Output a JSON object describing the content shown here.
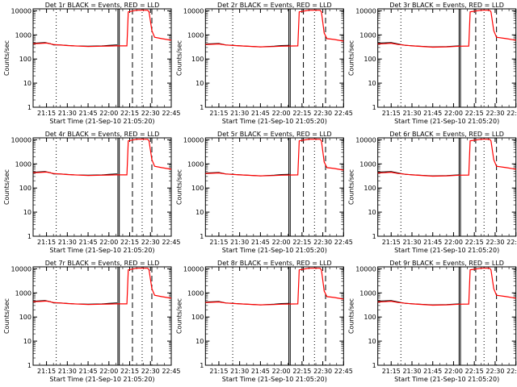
{
  "chart_data": {
    "type": "line",
    "y_scale": "log",
    "ylim": [
      1,
      12000
    ],
    "xlim": [
      "21:05:20",
      "22:45:00"
    ],
    "ylabel": "Counts/sec",
    "xlabel": "Start Time (21-Sep-10 21:05:20)",
    "x_ticks": [
      "21:15",
      "21:30",
      "21:45",
      "22:00",
      "22:15",
      "22:30",
      "22:45"
    ],
    "y_ticks": [
      "1",
      "10",
      "100",
      "1000",
      "10000"
    ],
    "series_colors": {
      "events": "#000000",
      "lld": "#ff0000"
    },
    "detectors": [
      {
        "title": "Det 1r BLACK = Events, RED = LLD",
        "variant": "a"
      },
      {
        "title": "Det 2r BLACK = Events, RED = LLD",
        "variant": "b"
      },
      {
        "title": "Det 3r BLACK = Events, RED = LLD",
        "variant": "c"
      },
      {
        "title": "Det 4r BLACK = Events, RED = LLD",
        "variant": "a"
      },
      {
        "title": "Det 5r BLACK = Events, RED = LLD",
        "variant": "b"
      },
      {
        "title": "Det 6r BLACK = Events, RED = LLD",
        "variant": "c"
      },
      {
        "title": "Det 7r BLACK = Events, RED = LLD",
        "variant": "a"
      },
      {
        "title": "Det 8r BLACK = Events, RED = LLD",
        "variant": "b"
      },
      {
        "title": "Det 9r BLACK = Events, RED = LLD",
        "variant": "c"
      }
    ],
    "variants": {
      "a": {
        "solid_vlines": [
          "22:06:30",
          "22:07:30"
        ],
        "dotted_vlines": [
          "21:22:00",
          "22:24:00"
        ],
        "dashed_vlines": [
          "22:17:00",
          "22:31:00"
        ],
        "series": [
          {
            "name": "events",
            "points": [
              [
                "21:05:20",
                450
              ],
              [
                "21:10",
                470
              ],
              [
                "21:14",
                480
              ],
              [
                "21:18",
                430
              ],
              [
                "21:20",
                380
              ],
              [
                "21:25",
                380
              ],
              [
                "21:35",
                350
              ],
              [
                "21:45",
                340
              ],
              [
                "21:55",
                350
              ],
              [
                "22:00",
                370
              ],
              [
                "22:05",
                380
              ],
              [
                "22:06",
                380
              ]
            ]
          },
          {
            "name": "lld",
            "points": [
              [
                "21:05:20",
                430
              ],
              [
                "21:10",
                440
              ],
              [
                "21:15",
                460
              ],
              [
                "21:20",
                400
              ],
              [
                "21:30",
                360
              ],
              [
                "21:45",
                330
              ],
              [
                "21:55",
                340
              ],
              [
                "22:00",
                345
              ],
              [
                "22:05",
                350
              ],
              [
                "22:13",
                350
              ],
              [
                "22:14",
                9000
              ],
              [
                "22:20",
                10500
              ],
              [
                "22:28",
                10500
              ],
              [
                "22:29",
                9000
              ],
              [
                "22:31",
                1500
              ],
              [
                "22:33",
                800
              ],
              [
                "22:38",
                700
              ],
              [
                "22:45",
                600
              ]
            ]
          }
        ]
      },
      "b": {
        "solid_vlines": [
          "22:05:30",
          "22:06:30"
        ],
        "dotted_vlines": [
          "21:25:00",
          "22:24:00"
        ],
        "dashed_vlines": [
          "22:16:00",
          "22:32:00"
        ],
        "series": [
          {
            "name": "events",
            "points": [
              [
                "21:05:20",
                420
              ],
              [
                "21:10",
                430
              ],
              [
                "21:15",
                440
              ],
              [
                "21:20",
                380
              ],
              [
                "21:25",
                370
              ],
              [
                "21:35",
                340
              ],
              [
                "21:45",
                320
              ],
              [
                "21:55",
                340
              ],
              [
                "22:00",
                360
              ],
              [
                "22:05",
                370
              ],
              [
                "22:06",
                370
              ]
            ]
          },
          {
            "name": "lld",
            "points": [
              [
                "21:05:20",
                400
              ],
              [
                "21:10",
                410
              ],
              [
                "21:15",
                420
              ],
              [
                "21:20",
                380
              ],
              [
                "21:30",
                350
              ],
              [
                "21:45",
                320
              ],
              [
                "21:55",
                330
              ],
              [
                "22:00",
                340
              ],
              [
                "22:05",
                345
              ],
              [
                "22:12",
                350
              ],
              [
                "22:13",
                9000
              ],
              [
                "22:20",
                10500
              ],
              [
                "22:28",
                10500
              ],
              [
                "22:29",
                9000
              ],
              [
                "22:31",
                1200
              ],
              [
                "22:33",
                700
              ],
              [
                "22:38",
                650
              ],
              [
                "22:45",
                550
              ]
            ]
          }
        ]
      },
      "c": {
        "solid_vlines": [
          "22:04:00",
          "22:05:00"
        ],
        "dotted_vlines": [
          "21:22:00",
          "22:22:00"
        ],
        "dashed_vlines": [
          "22:16:00",
          "22:31:00"
        ],
        "series": [
          {
            "name": "events",
            "points": [
              [
                "21:05:20",
                460
              ],
              [
                "21:10",
                470
              ],
              [
                "21:15",
                480
              ],
              [
                "21:20",
                420
              ],
              [
                "21:25",
                370
              ],
              [
                "21:35",
                340
              ],
              [
                "21:45",
                320
              ],
              [
                "21:55",
                330
              ],
              [
                "22:00",
                340
              ],
              [
                "22:04",
                350
              ]
            ]
          },
          {
            "name": "lld",
            "points": [
              [
                "21:05:20",
                420
              ],
              [
                "21:10",
                430
              ],
              [
                "21:15",
                450
              ],
              [
                "21:20",
                400
              ],
              [
                "21:30",
                350
              ],
              [
                "21:45",
                310
              ],
              [
                "21:55",
                320
              ],
              [
                "22:00",
                330
              ],
              [
                "22:04",
                340
              ],
              [
                "22:11",
                345
              ],
              [
                "22:12",
                9000
              ],
              [
                "22:20",
                10500
              ],
              [
                "22:26",
                10500
              ],
              [
                "22:27",
                9000
              ],
              [
                "22:29",
                1500
              ],
              [
                "22:31",
                800
              ],
              [
                "22:38",
                700
              ],
              [
                "22:45",
                600
              ]
            ]
          }
        ]
      }
    }
  }
}
